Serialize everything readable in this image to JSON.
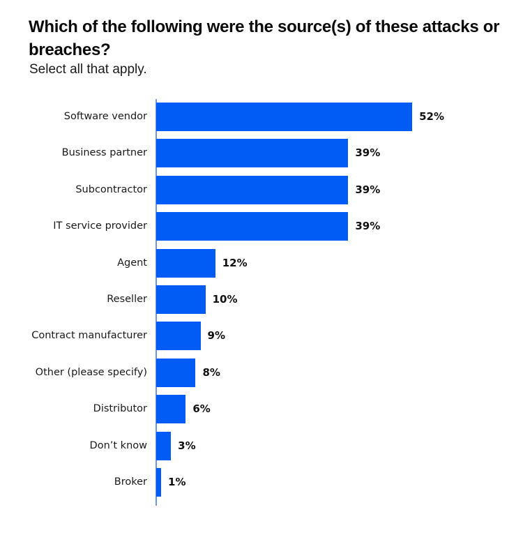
{
  "header": {
    "title": "Which of the following were the source(s) of these attacks or breaches?",
    "subtitle": "Select all that apply."
  },
  "colors": {
    "bar": "#005cf5",
    "axis": "#6f95f0"
  },
  "chart_data": {
    "type": "bar",
    "orientation": "horizontal",
    "title": "Which of the following were the source(s) of these attacks or breaches?",
    "subtitle": "Select all that apply.",
    "xlabel": "",
    "ylabel": "",
    "categories": [
      "Software vendor",
      "Business partner",
      "Subcontractor",
      "IT service provider",
      "Agent",
      "Reseller",
      "Contract manufacturer",
      "Other (please specify)",
      "Distributor",
      "Don’t know",
      "Broker"
    ],
    "values": [
      52,
      39,
      39,
      39,
      12,
      10,
      9,
      8,
      6,
      3,
      1
    ],
    "value_labels": [
      "52%",
      "39%",
      "39%",
      "39%",
      "12%",
      "10%",
      "9%",
      "8%",
      "6%",
      "3%",
      "1%"
    ],
    "unit": "%",
    "xlim": [
      0,
      60
    ],
    "grid": false,
    "legend": null
  }
}
